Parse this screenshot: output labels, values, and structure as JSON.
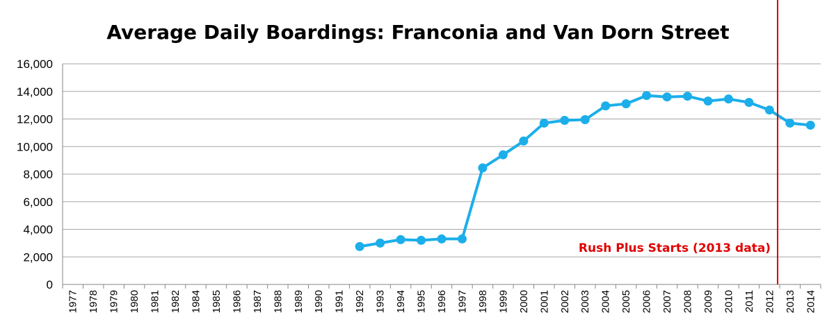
{
  "chart_data": {
    "type": "line",
    "title": "Average Daily Boardings: Franconia and Van Dorn Street",
    "xlabel": "",
    "ylabel": "",
    "categories": [
      "1977",
      "1978",
      "1979",
      "1980",
      "1981",
      "1982",
      "1984",
      "1985",
      "1986",
      "1987",
      "1988",
      "1989",
      "1990",
      "1991",
      "1992",
      "1993",
      "1994",
      "1995",
      "1996",
      "1997",
      "1998",
      "1999",
      "2000",
      "2001",
      "2002",
      "2003",
      "2004",
      "2005",
      "2006",
      "2007",
      "2008",
      "2009",
      "2010",
      "2011",
      "2012",
      "2013",
      "2014"
    ],
    "series": [
      {
        "values": [
          null,
          null,
          null,
          null,
          null,
          null,
          null,
          null,
          null,
          null,
          null,
          null,
          null,
          null,
          2750,
          3000,
          3250,
          3200,
          3300,
          3300,
          8450,
          9400,
          10400,
          11700,
          11900,
          11950,
          12950,
          13100,
          13700,
          13600,
          13650,
          13300,
          13450,
          13200,
          12650,
          11700,
          11550
        ]
      }
    ],
    "ylim": [
      0,
      16000
    ],
    "yticks": [
      "0",
      "2,000",
      "4,000",
      "6,000",
      "8,000",
      "10,000",
      "12,000",
      "14,000",
      "16,000"
    ],
    "grid": true,
    "legend": "none",
    "annotation": {
      "text": "Rush Plus Starts (2013 data)",
      "after_category": "2012"
    },
    "colors": {
      "series": "#1BAEEA",
      "annotation": "#E00000",
      "grid": "#A6A6A6"
    }
  }
}
